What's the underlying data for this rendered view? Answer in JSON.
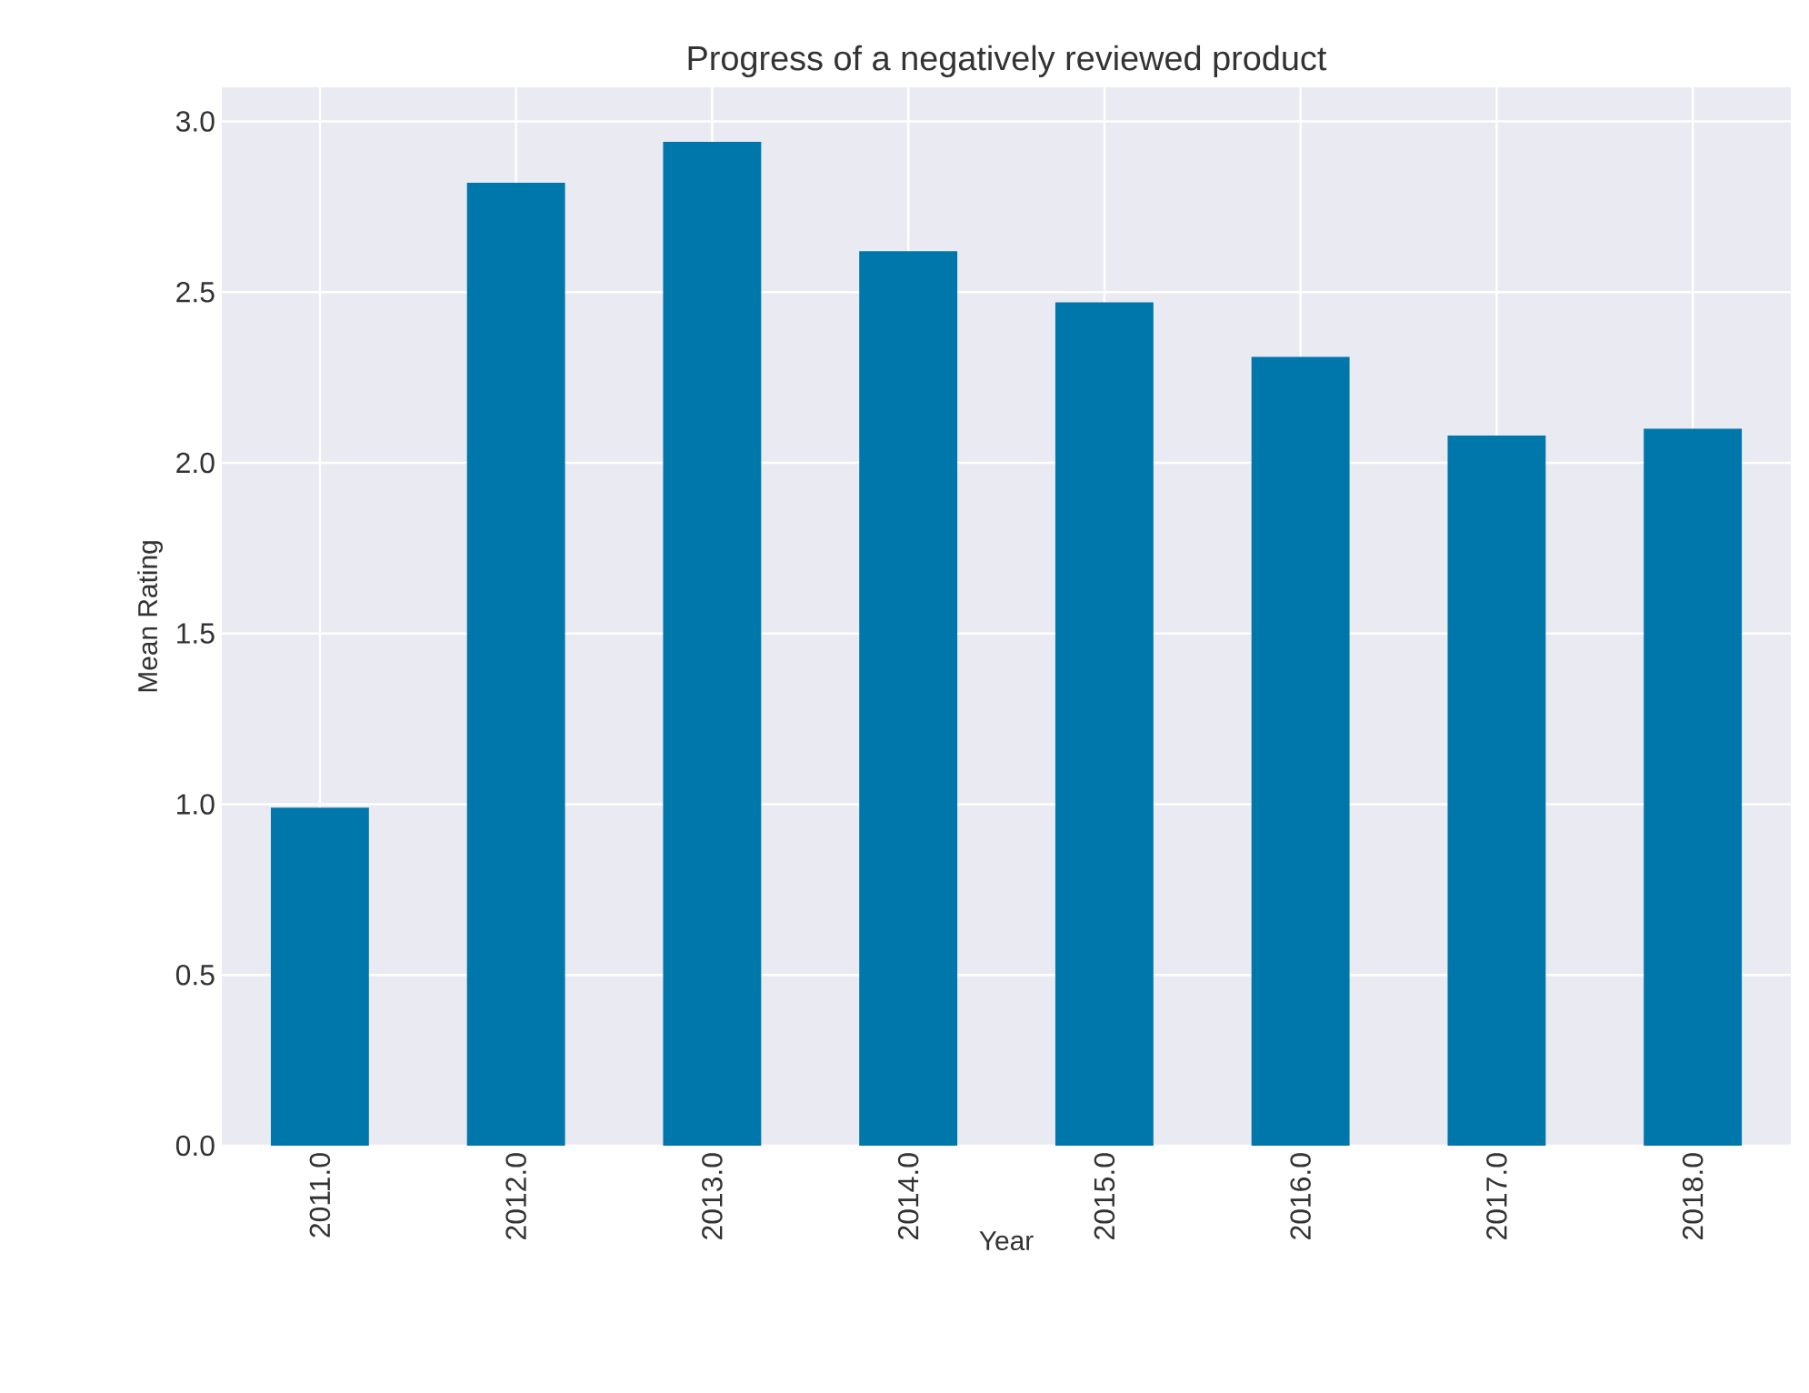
{
  "chart_data": {
    "type": "bar",
    "title": "Progress of a negatively reviewed product",
    "xlabel": "Year",
    "ylabel": "Mean Rating",
    "categories": [
      "2011.0",
      "2012.0",
      "2013.0",
      "2014.0",
      "2015.0",
      "2016.0",
      "2017.0",
      "2018.0"
    ],
    "values": [
      0.99,
      2.82,
      2.94,
      2.62,
      2.47,
      2.31,
      2.08,
      2.1
    ],
    "color": "#0077aa",
    "ylim": [
      0,
      3.1
    ],
    "yticks": [
      {
        "value": 0,
        "label": "0.0"
      },
      {
        "value": 0.5,
        "label": "0.5"
      },
      {
        "value": 1,
        "label": "1.0"
      },
      {
        "value": 1.5,
        "label": "1.5"
      },
      {
        "value": 2,
        "label": "2.0"
      },
      {
        "value": 2.5,
        "label": "2.5"
      },
      {
        "value": 3,
        "label": "3.0"
      }
    ],
    "grid": true
  }
}
